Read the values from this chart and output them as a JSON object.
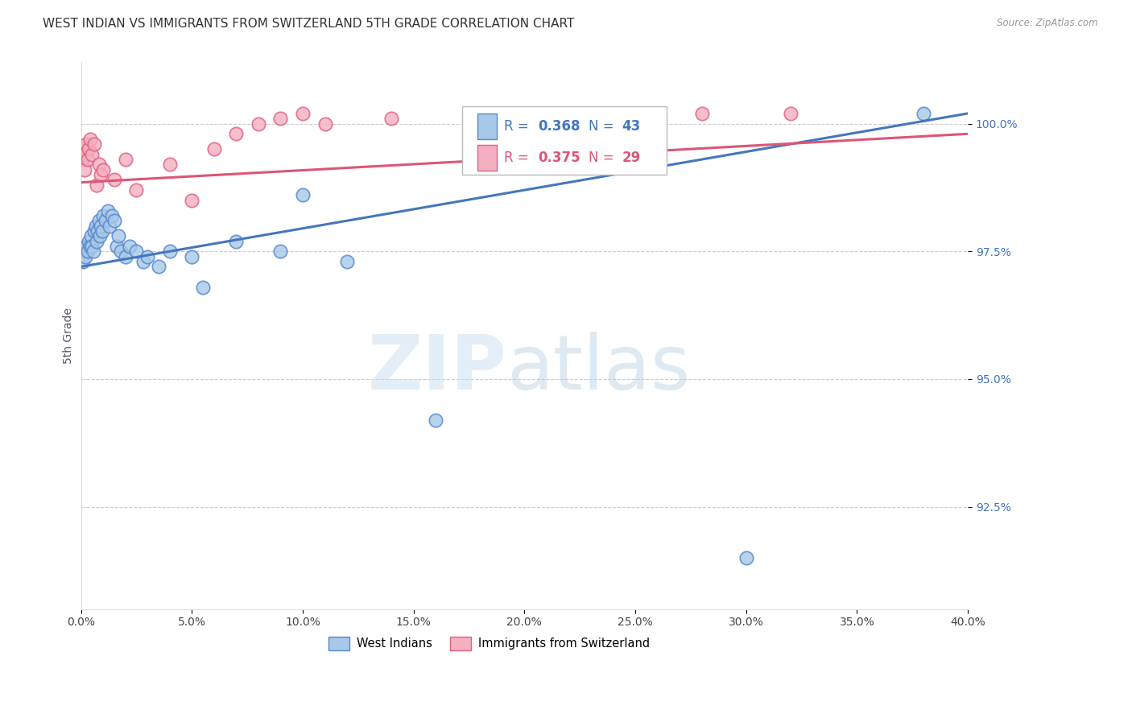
{
  "title": "WEST INDIAN VS IMMIGRANTS FROM SWITZERLAND 5TH GRADE CORRELATION CHART",
  "source": "Source: ZipAtlas.com",
  "ylabel": "5th Grade",
  "xmin": 0.0,
  "xmax": 40.0,
  "ymin": 90.5,
  "ymax": 101.2,
  "yticks": [
    92.5,
    95.0,
    97.5,
    100.0
  ],
  "xticks": [
    0.0,
    5.0,
    10.0,
    15.0,
    20.0,
    25.0,
    30.0,
    35.0,
    40.0
  ],
  "blue_R": 0.368,
  "blue_N": 43,
  "pink_R": 0.375,
  "pink_N": 29,
  "blue_color": "#a8c8e8",
  "pink_color": "#f4b0c0",
  "blue_edge_color": "#5588cc",
  "pink_edge_color": "#e06080",
  "blue_line_color": "#4477bb",
  "pink_line_color": "#dd5577",
  "blue_scatter_x": [
    0.1,
    0.15,
    0.2,
    0.25,
    0.3,
    0.35,
    0.4,
    0.45,
    0.5,
    0.55,
    0.6,
    0.65,
    0.7,
    0.75,
    0.8,
    0.85,
    0.9,
    0.95,
    1.0,
    1.1,
    1.2,
    1.3,
    1.4,
    1.5,
    1.6,
    1.7,
    1.8,
    2.0,
    2.2,
    2.5,
    2.8,
    3.0,
    3.5,
    4.0,
    5.0,
    5.5,
    7.0,
    9.0,
    10.0,
    12.0,
    16.0,
    30.0,
    38.0
  ],
  "blue_scatter_y": [
    97.3,
    97.5,
    97.4,
    97.6,
    97.5,
    97.7,
    97.6,
    97.8,
    97.6,
    97.5,
    97.9,
    98.0,
    97.7,
    97.9,
    98.1,
    97.8,
    98.0,
    97.9,
    98.2,
    98.1,
    98.3,
    98.0,
    98.2,
    98.1,
    97.6,
    97.8,
    97.5,
    97.4,
    97.6,
    97.5,
    97.3,
    97.4,
    97.2,
    97.5,
    97.4,
    96.8,
    97.7,
    97.5,
    98.6,
    97.3,
    94.2,
    91.5,
    100.2
  ],
  "pink_scatter_x": [
    0.05,
    0.1,
    0.15,
    0.2,
    0.25,
    0.3,
    0.35,
    0.4,
    0.5,
    0.6,
    0.7,
    0.8,
    0.9,
    1.0,
    1.5,
    2.0,
    2.5,
    4.0,
    5.0,
    6.0,
    7.0,
    8.0,
    9.0,
    10.0,
    11.0,
    14.0,
    20.0,
    28.0,
    32.0
  ],
  "pink_scatter_y": [
    99.3,
    99.5,
    99.1,
    99.4,
    99.6,
    99.3,
    99.5,
    99.7,
    99.4,
    99.6,
    98.8,
    99.2,
    99.0,
    99.1,
    98.9,
    99.3,
    98.7,
    99.2,
    98.5,
    99.5,
    99.8,
    100.0,
    100.1,
    100.2,
    100.0,
    100.1,
    100.2,
    100.2,
    100.2
  ],
  "blue_trend_x0": 0.0,
  "blue_trend_y0": 97.2,
  "blue_trend_x1": 40.0,
  "blue_trend_y1": 100.2,
  "pink_trend_x0": 0.0,
  "pink_trend_y0": 98.85,
  "pink_trend_x1": 40.0,
  "pink_trend_y1": 99.8,
  "watermark_zip": "ZIP",
  "watermark_atlas": "atlas",
  "background_color": "#ffffff",
  "grid_color": "#cccccc",
  "title_fontsize": 11,
  "axis_label_fontsize": 10,
  "tick_fontsize": 10,
  "right_tick_color": "#4472c4",
  "source_color": "#999999"
}
